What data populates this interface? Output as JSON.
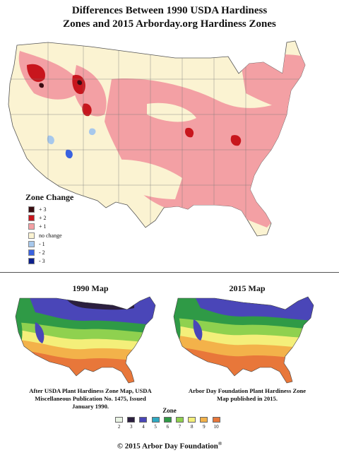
{
  "title": {
    "line1": "Differences Between 1990 USDA Hardiness",
    "line2": "Zones and 2015 Arborday.org Hardiness Zones"
  },
  "legend": {
    "title": "Zone Change",
    "items": [
      {
        "label": "+ 3",
        "color": "#3a0d12"
      },
      {
        "label": "+ 2",
        "color": "#c8161d"
      },
      {
        "label": "+ 1",
        "color": "#f3a0a4"
      },
      {
        "label": "no change",
        "color": "#fbf3d2"
      },
      {
        "label": "- 1",
        "color": "#a7c8ec"
      },
      {
        "label": "- 2",
        "color": "#3a62e0"
      },
      {
        "label": "- 3",
        "color": "#0b1f8c"
      }
    ]
  },
  "maps": {
    "left": {
      "title": "1990 Map",
      "caption_lines": [
        "After USDA Plant Hardiness Zone Map, USDA",
        "Miscellaneous Publication No. 1475, Issued",
        "January 1990."
      ]
    },
    "right": {
      "title": "2015 Map",
      "caption_lines": [
        "Arbor Day Foundation Plant Hardiness Zone",
        "Map published in 2015."
      ]
    }
  },
  "zone_scale": {
    "title": "Zone",
    "items": [
      {
        "label": "2",
        "color": "#e9f3e4"
      },
      {
        "label": "3",
        "color": "#2b1f3f"
      },
      {
        "label": "4",
        "color": "#4a46b8"
      },
      {
        "label": "5",
        "color": "#2fa9c2"
      },
      {
        "label": "6",
        "color": "#2f9a46"
      },
      {
        "label": "7",
        "color": "#8fd14f"
      },
      {
        "label": "8",
        "color": "#f4ef7a"
      },
      {
        "label": "9",
        "color": "#f3b24a"
      },
      {
        "label": "10",
        "color": "#e8773a"
      }
    ]
  },
  "copyright": {
    "text": "© 2015 Arbor Day Foundation",
    "mark": "®"
  }
}
